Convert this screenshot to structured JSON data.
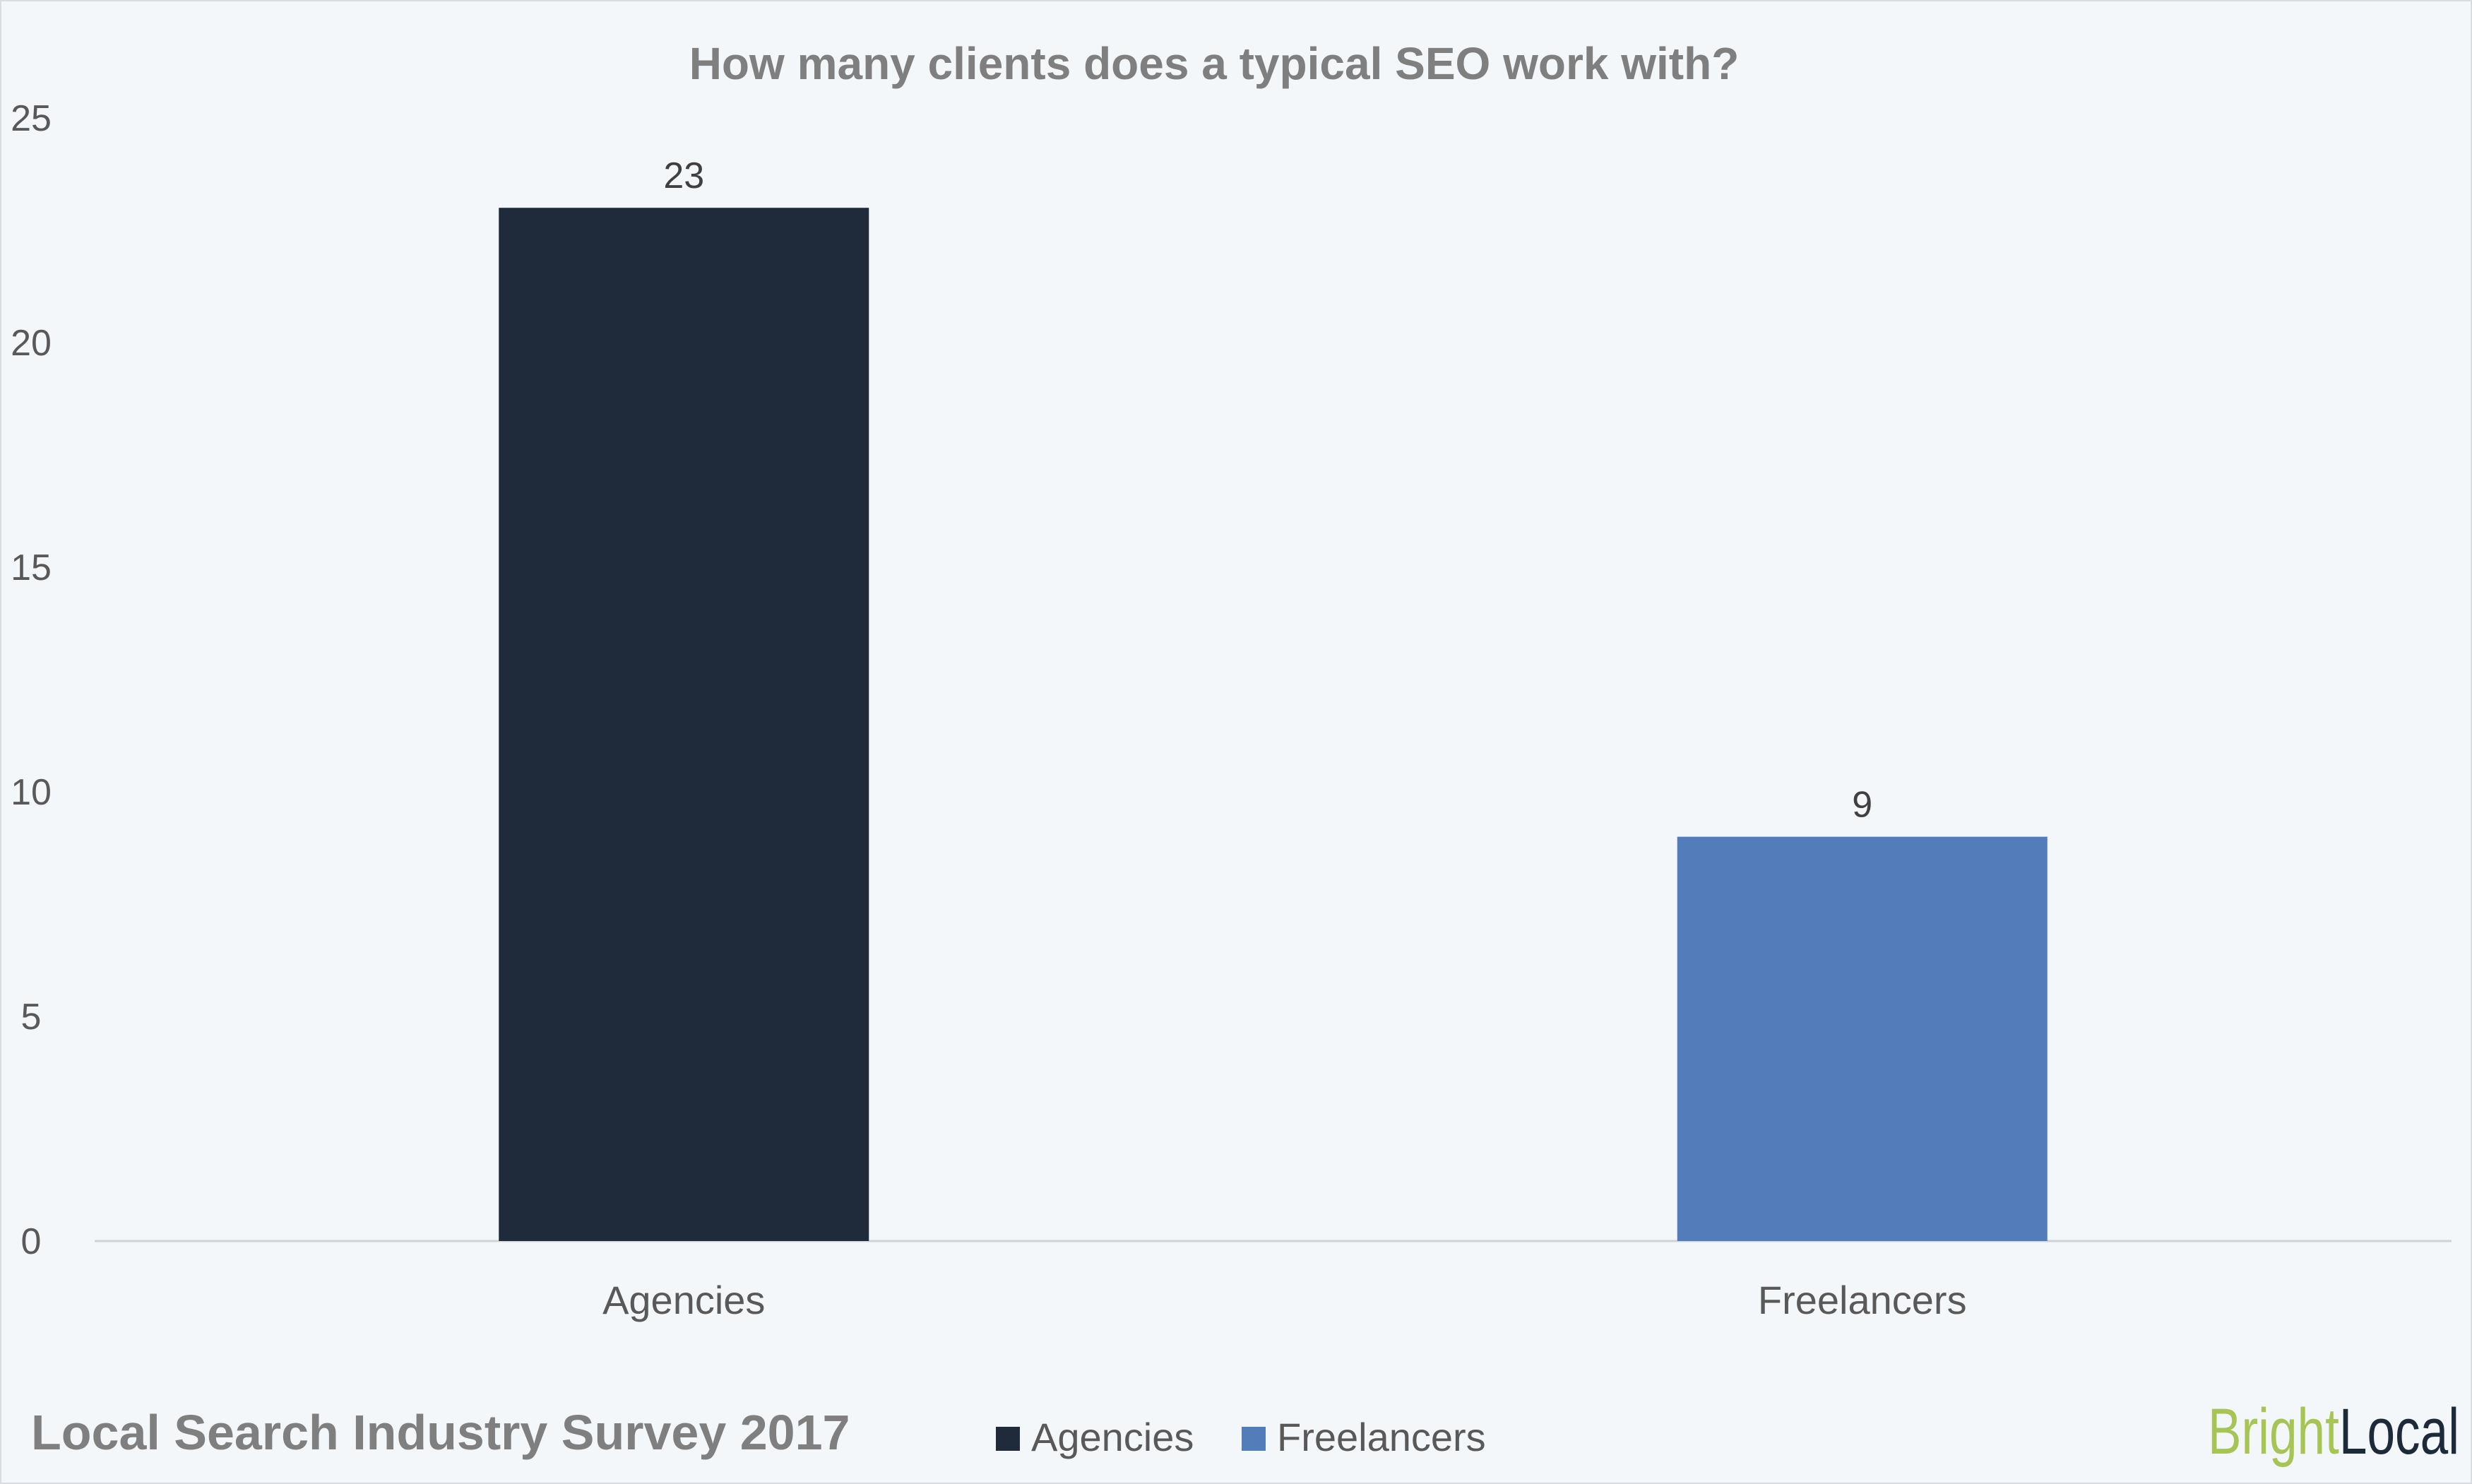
{
  "chart_data": {
    "type": "bar",
    "title": "How many clients does a typical SEO work with?",
    "categories": [
      "Agencies",
      "Freelancers"
    ],
    "values": [
      23,
      9
    ],
    "data_labels": [
      "23",
      "9"
    ],
    "colors": [
      "#1f2b3b",
      "#537cbb"
    ],
    "ylim": [
      0,
      25
    ],
    "yticks": [
      "0",
      "5",
      "10",
      "15",
      "20",
      "25"
    ],
    "grid": false,
    "legend": {
      "placement": "bottom",
      "entries": [
        "Agencies",
        "Freelancers"
      ]
    },
    "xlabel": "",
    "ylabel": ""
  },
  "footer": {
    "source": "Local Search Industry Survey 2017",
    "logo": {
      "part1": "Bright",
      "part2": "Local",
      "color1": "#a6c555",
      "color2": "#1d2a3a"
    }
  },
  "colors": {
    "background": "#f3f7fa",
    "text": "#595959",
    "title": "#7f7f7f"
  }
}
